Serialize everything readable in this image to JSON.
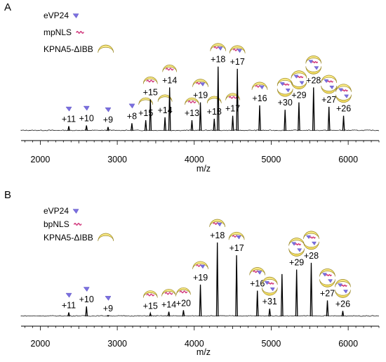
{
  "chart_data": [
    {
      "panel": "A",
      "type": "line",
      "xlabel": "m/z",
      "xlim": [
        1750,
        6400
      ],
      "xticks": [
        2000,
        3000,
        4000,
        5000,
        6000
      ],
      "xtick_labels": [
        "2000",
        "3000",
        "4000",
        "5000",
        "6000"
      ],
      "ylim": [
        0,
        100
      ],
      "legend": [
        {
          "label": "eVP24",
          "glyph": "triangle",
          "color": "#7b6fe0"
        },
        {
          "label": "mpNLS",
          "glyph": "squiggle",
          "color": "#d0357a"
        },
        {
          "label": "KPNA5-ΔIBB",
          "glyph": "crescent",
          "color": "#f5e06a"
        }
      ],
      "peaks": [
        {
          "mz": 2370,
          "intensity": 8,
          "label": "+11",
          "icon": "eVP24"
        },
        {
          "mz": 2600,
          "intensity": 9,
          "label": "+10",
          "icon": "eVP24"
        },
        {
          "mz": 2880,
          "intensity": 7,
          "label": "+9",
          "icon": "eVP24"
        },
        {
          "mz": 3190,
          "intensity": 12,
          "label": "+8",
          "icon": "eVP24"
        },
        {
          "mz": 3370,
          "intensity": 16,
          "label": "+15",
          "icon": "KPNA5"
        },
        {
          "mz": 3430,
          "intensity": 44,
          "label": "+15",
          "icon": "KPNA5+mpNLS"
        },
        {
          "mz": 3620,
          "intensity": 20,
          "label": "+14",
          "icon": "KPNA5"
        },
        {
          "mz": 3680,
          "intensity": 60,
          "label": "+14",
          "icon": "KPNA5+mpNLS"
        },
        {
          "mz": 3970,
          "intensity": 16,
          "label": "+13",
          "icon": "KPNA5+mpNLS"
        },
        {
          "mz": 4080,
          "intensity": 40,
          "label": "+19",
          "icon": "complex"
        },
        {
          "mz": 4260,
          "intensity": 18,
          "label": "+18",
          "icon": "KPNA5"
        },
        {
          "mz": 4310,
          "intensity": 88,
          "label": "+18",
          "icon": "complex"
        },
        {
          "mz": 4500,
          "intensity": 22,
          "label": "+17",
          "icon": "KPNA5+mpNLS"
        },
        {
          "mz": 4560,
          "intensity": 85,
          "label": "+17",
          "icon": "complex"
        },
        {
          "mz": 4850,
          "intensity": 36,
          "label": "+16",
          "icon": "complex"
        },
        {
          "mz": 5180,
          "intensity": 30,
          "label": "+30",
          "icon": "dimer"
        },
        {
          "mz": 5360,
          "intensity": 40,
          "label": "+29",
          "icon": "dimer"
        },
        {
          "mz": 5550,
          "intensity": 60,
          "label": "+28",
          "icon": "dimer"
        },
        {
          "mz": 5750,
          "intensity": 34,
          "label": "+27",
          "icon": "dimer"
        },
        {
          "mz": 5940,
          "intensity": 22,
          "label": "+26",
          "icon": "dimer"
        }
      ]
    },
    {
      "panel": "B",
      "type": "line",
      "xlabel": "m/z",
      "xlim": [
        1750,
        6400
      ],
      "xticks": [
        2000,
        3000,
        4000,
        5000,
        6000
      ],
      "xtick_labels": [
        "2000",
        "3000",
        "4000",
        "5000",
        "6000"
      ],
      "ylim": [
        0,
        100
      ],
      "legend": [
        {
          "label": "eVP24",
          "glyph": "triangle",
          "color": "#7b6fe0"
        },
        {
          "label": "bpNLS",
          "glyph": "squiggle",
          "color": "#d0357a"
        },
        {
          "label": "KPNA5-ΔIBB",
          "glyph": "crescent",
          "color": "#f5e06a"
        }
      ],
      "peaks": [
        {
          "mz": 2370,
          "intensity": 7,
          "label": "+11",
          "icon": "eVP24"
        },
        {
          "mz": 2600,
          "intensity": 15,
          "label": "+10",
          "icon": "eVP24"
        },
        {
          "mz": 2880,
          "intensity": 3,
          "label": "+9",
          "icon": "eVP24"
        },
        {
          "mz": 3430,
          "intensity": 6,
          "label": "+15",
          "icon": "KPNA5+bpNLS"
        },
        {
          "mz": 3670,
          "intensity": 8,
          "label": "+14",
          "icon": "KPNA5+bpNLS"
        },
        {
          "mz": 3860,
          "intensity": 10,
          "label": "+20",
          "icon": "KPNA5+bpNLS"
        },
        {
          "mz": 4080,
          "intensity": 44,
          "label": "+19",
          "icon": "complex"
        },
        {
          "mz": 4300,
          "intensity": 100,
          "label": "+18",
          "icon": "complex"
        },
        {
          "mz": 4550,
          "intensity": 83,
          "label": "+17",
          "icon": "complex"
        },
        {
          "mz": 4820,
          "intensity": 36,
          "label": "+16",
          "icon": "complex"
        },
        {
          "mz": 4980,
          "intensity": 12,
          "label": "+31",
          "icon": "dimer"
        },
        {
          "mz": 5140,
          "intensity": 58,
          "label": "",
          "icon": "none"
        },
        {
          "mz": 5330,
          "intensity": 64,
          "label": "+29",
          "icon": "dimer"
        },
        {
          "mz": 5520,
          "intensity": 73,
          "label": "+28",
          "icon": "dimer"
        },
        {
          "mz": 5730,
          "intensity": 23,
          "label": "+27",
          "icon": "dimer"
        },
        {
          "mz": 5930,
          "intensity": 9,
          "label": "+26",
          "icon": "dimer"
        }
      ]
    }
  ]
}
